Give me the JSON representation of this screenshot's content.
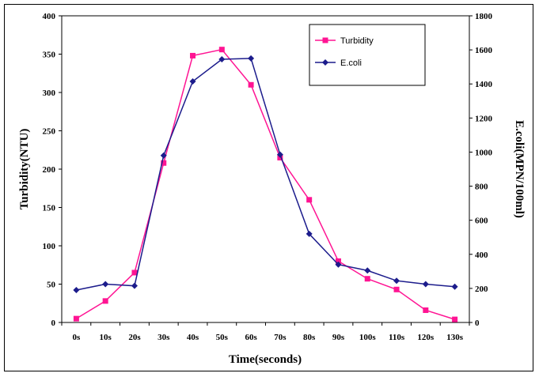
{
  "chart_data": {
    "type": "line",
    "title": "",
    "xlabel": "Time(seconds)",
    "ylabel": "Turbidity(NTU)",
    "y2label": "E.coli(MPN/100ml)",
    "categories": [
      "0s",
      "10s",
      "20s",
      "30s",
      "40s",
      "50s",
      "60s",
      "70s",
      "80s",
      "90s",
      "100s",
      "110s",
      "120s",
      "130s"
    ],
    "ylim": [
      0,
      400
    ],
    "y2lim": [
      0,
      1800
    ],
    "yticks": [
      "0",
      "50",
      "100",
      "150",
      "200",
      "250",
      "300",
      "350",
      "400"
    ],
    "y2ticks": [
      "0",
      "200",
      "400",
      "600",
      "800",
      "1000",
      "1200",
      "1400",
      "1600",
      "1800"
    ],
    "grid": false,
    "legend_position": "top-right",
    "series": [
      {
        "name": "Turbidity",
        "axis": "left",
        "color": "#ff1493",
        "marker": "square",
        "values": [
          5,
          28,
          65,
          208,
          348,
          356,
          310,
          215,
          160,
          80,
          57,
          43,
          16,
          4
        ]
      },
      {
        "name": "E.coli",
        "axis": "right",
        "color": "#1c1c8c",
        "marker": "diamond",
        "values": [
          190,
          225,
          215,
          980,
          1415,
          1545,
          1550,
          985,
          520,
          340,
          305,
          245,
          225,
          210
        ]
      }
    ]
  }
}
